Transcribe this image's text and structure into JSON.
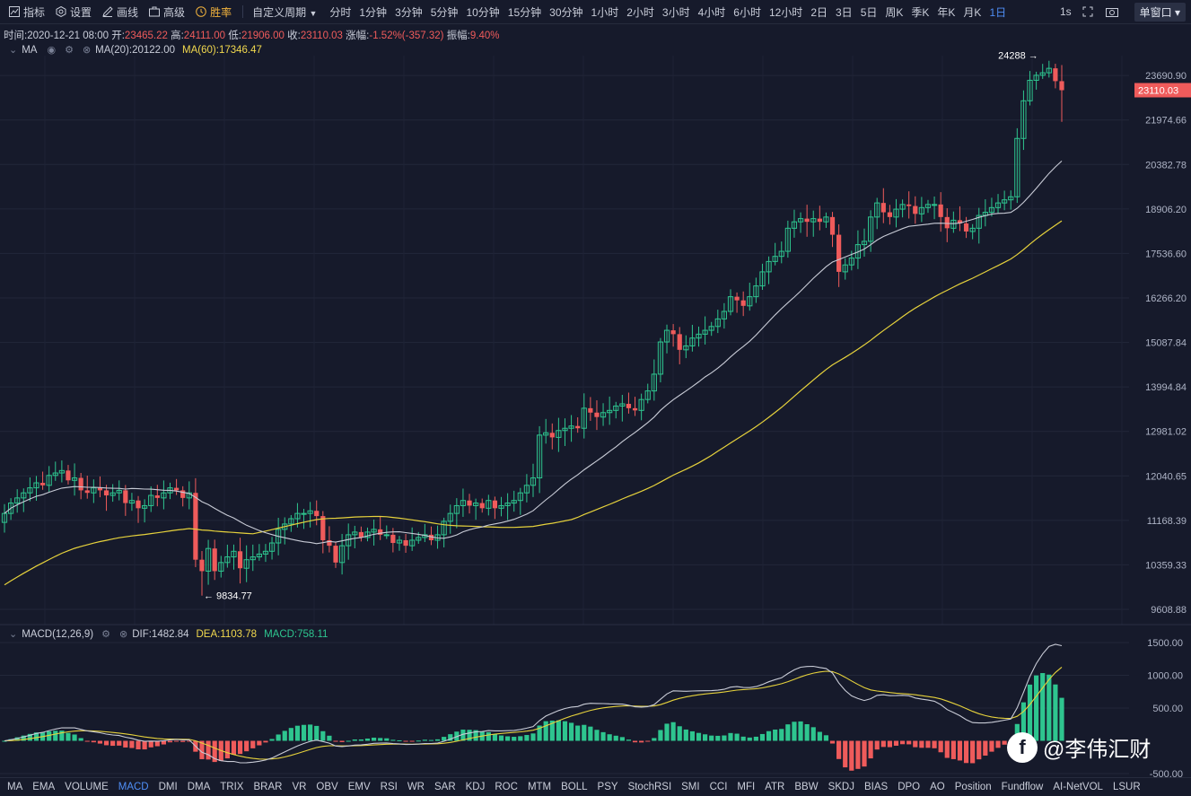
{
  "toolbar": {
    "indicator": "指标",
    "settings": "设置",
    "draw": "画线",
    "advanced": "高级",
    "winrate": "胜率",
    "custom_period": "自定义周期",
    "periods": [
      "分时",
      "1分钟",
      "3分钟",
      "5分钟",
      "10分钟",
      "15分钟",
      "30分钟",
      "1小时",
      "2小时",
      "3小时",
      "4小时",
      "6小时",
      "12小时",
      "2日",
      "3日",
      "5日",
      "周K",
      "季K",
      "年K",
      "月K",
      "1日"
    ],
    "active_period": "1日",
    "interval": "1s",
    "window_mode": "单窗口"
  },
  "info": {
    "time_label": "时间:",
    "time": "2020-12-21 08:00",
    "open_label": "开:",
    "open": "23465.22",
    "high_label": "高:",
    "high": "24111.00",
    "low_label": "低:",
    "low": "21906.00",
    "close_label": "收:",
    "close": "23110.03",
    "change_label": "涨幅:",
    "change": "-1.52%(-357.32)",
    "amp_label": "振幅:",
    "amp": "9.40%"
  },
  "ma_legend": {
    "name": "MA",
    "ma20": "MA(20):20122.00",
    "ma60": "MA(60):17346.47"
  },
  "macd_legend": {
    "name": "MACD(12,26,9)",
    "dif": "DIF:1482.84",
    "dea": "DEA:1103.78",
    "macd": "MACD:758.11"
  },
  "indicators": [
    "MA",
    "EMA",
    "VOLUME",
    "MACD",
    "DMI",
    "DMA",
    "TRIX",
    "BRAR",
    "VR",
    "OBV",
    "EMV",
    "RSI",
    "WR",
    "SAR",
    "KDJ",
    "ROC",
    "MTM",
    "BOLL",
    "PSY",
    "StochRSI",
    "SMI",
    "CCI",
    "MFI",
    "ATR",
    "BBW",
    "SKDJ",
    "BIAS",
    "DPO",
    "AO",
    "Position",
    "Fundflow",
    "AI-NetVOL",
    "LSUR"
  ],
  "active_indicator": "MACD",
  "watermark": "@李伟汇财",
  "colors": {
    "up": "#2ec58f",
    "down": "#ef5b5b",
    "ma20": "#c8cbd6",
    "ma60": "#e6d23c",
    "background": "#161a2b"
  },
  "chart_data": [
    {
      "type": "candlestick",
      "ylim": [
        9450,
        24500
      ],
      "y_ticks": [
        "23690.90",
        "21974.66",
        "20382.78",
        "18906.20",
        "17536.60",
        "16266.20",
        "15087.84",
        "13994.84",
        "12981.02",
        "12040.65",
        "11168.39",
        "10359.33",
        "9608.88"
      ],
      "y_scale": "log",
      "price_tag": "23110.03",
      "annotations": {
        "max": "24288",
        "min": "9834.77"
      },
      "closes": [
        11300,
        11500,
        11600,
        11700,
        11800,
        11900,
        11850,
        12050,
        12100,
        12150,
        11950,
        12000,
        11750,
        11700,
        11800,
        11750,
        11650,
        11700,
        11750,
        11500,
        11550,
        11400,
        11450,
        11650,
        11600,
        11700,
        11800,
        11750,
        11600,
        11700,
        10450,
        10250,
        10650,
        10250,
        10400,
        10500,
        10600,
        10300,
        10450,
        10500,
        10550,
        10600,
        10750,
        11000,
        11100,
        11200,
        11300,
        11300,
        11350,
        11250,
        10800,
        10700,
        10400,
        10700,
        10900,
        10950,
        10850,
        10950,
        11000,
        10900,
        10900,
        10750,
        10800,
        10700,
        10800,
        10850,
        10900,
        10800,
        10900,
        11150,
        11300,
        11450,
        11550,
        11450,
        11500,
        11400,
        11550,
        11400,
        11450,
        11500,
        11550,
        11700,
        11850,
        12000,
        12900,
        12950,
        12850,
        13000,
        13050,
        13100,
        13050,
        13500,
        13400,
        13300,
        13400,
        13450,
        13550,
        13600,
        13500,
        13450,
        13700,
        13900,
        14300,
        15100,
        15400,
        15300,
        14900,
        15000,
        15200,
        15300,
        15400,
        15500,
        15700,
        15900,
        16300,
        16200,
        16050,
        16300,
        16600,
        17000,
        17300,
        17450,
        17600,
        18300,
        18500,
        18600,
        18500,
        18600,
        18500,
        18650,
        18100,
        17000,
        17200,
        17400,
        17800,
        17900,
        18650,
        19100,
        18800,
        18650,
        18900,
        19050,
        19000,
        18750,
        18950,
        19050,
        19050,
        18650,
        18300,
        18550,
        18450,
        18200,
        18300,
        18700,
        18800,
        18950,
        19100,
        19200,
        19300,
        21300,
        22700,
        23500,
        23700,
        23800,
        23980,
        23467,
        23110
      ]
    },
    {
      "type": "line",
      "name": "MACD(12,26,9)",
      "y_ticks": [
        "1500.00",
        "1000.00",
        "500.00",
        "-500.00"
      ],
      "ylim": [
        -580,
        1620
      ]
    }
  ]
}
